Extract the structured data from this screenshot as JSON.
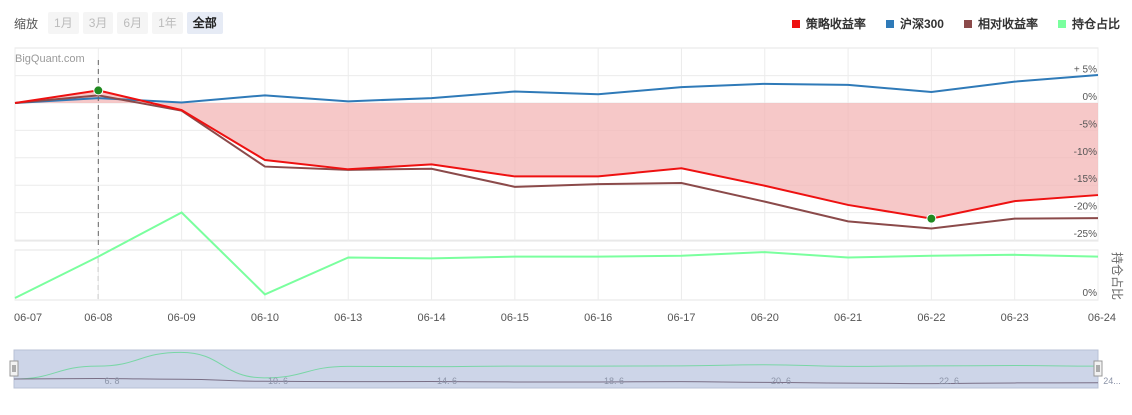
{
  "zoom": {
    "label": "缩放",
    "buttons": [
      {
        "label": "1月",
        "active": false
      },
      {
        "label": "3月",
        "active": false
      },
      {
        "label": "6月",
        "active": false
      },
      {
        "label": "1年",
        "active": false
      },
      {
        "label": "全部",
        "active": true
      }
    ]
  },
  "legend": [
    {
      "label": "策略收益率",
      "color": "#ee1111"
    },
    {
      "label": "沪深300",
      "color": "#2f7ab8"
    },
    {
      "label": "相对收益率",
      "color": "#8b4a4a"
    },
    {
      "label": "持仓占比",
      "color": "#7aff9e"
    }
  ],
  "watermark": "BigQuant.com",
  "colors": {
    "strategy": "#ee1111",
    "benchmark": "#2f7ab8",
    "relative": "#8b4a4a",
    "position": "#7aff9e",
    "fill": "#f3b5b5",
    "marker": "#1f8a1f",
    "navigator_bg": "#cdd5e8"
  },
  "chart_data": [
    {
      "type": "line",
      "x": [
        "06-07",
        "06-08",
        "06-09",
        "06-10",
        "06-13",
        "06-14",
        "06-15",
        "06-16",
        "06-17",
        "06-20",
        "06-21",
        "06-22",
        "06-23",
        "06-24"
      ],
      "y_ticks": [
        "+ 5%",
        "0%",
        "-5%",
        "-10%",
        "-15%",
        "-20%",
        "-25%"
      ],
      "ylim": [
        -25,
        6
      ],
      "series": [
        {
          "name": "策略收益率",
          "values": [
            0,
            2.3,
            -1.3,
            -10.4,
            -12.1,
            -11.2,
            -13.4,
            -13.4,
            -11.9,
            -15.1,
            -18.6,
            -21.1,
            -17.9,
            -16.8
          ]
        },
        {
          "name": "沪深300",
          "values": [
            0,
            0.9,
            0.1,
            1.4,
            0.3,
            0.9,
            2.1,
            1.6,
            2.9,
            3.5,
            3.3,
            2.0,
            3.9,
            5.1
          ]
        },
        {
          "name": "相对收益率",
          "values": [
            0,
            1.4,
            -1.4,
            -11.6,
            -12.2,
            -12.0,
            -15.3,
            -14.8,
            -14.6,
            -18.0,
            -21.6,
            -22.9,
            -21.1,
            -21.0
          ]
        }
      ],
      "markers": [
        {
          "x": "06-08",
          "value": 2.3
        },
        {
          "x": "06-22",
          "value": -21.1
        }
      ]
    },
    {
      "type": "line",
      "ylabel": "持仓占比",
      "y_ticks": [
        "0%"
      ],
      "ylim": [
        0,
        100
      ],
      "series": [
        {
          "name": "持仓占比",
          "values": [
            0,
            46,
            95,
            4,
            45,
            44,
            46,
            46,
            47,
            51,
            45,
            47,
            48,
            46
          ]
        }
      ]
    }
  ],
  "navigator_labels": [
    "6. 8",
    "10. 6",
    "14. 6",
    "18. 6",
    "20. 6",
    "22. 6",
    "24..."
  ]
}
